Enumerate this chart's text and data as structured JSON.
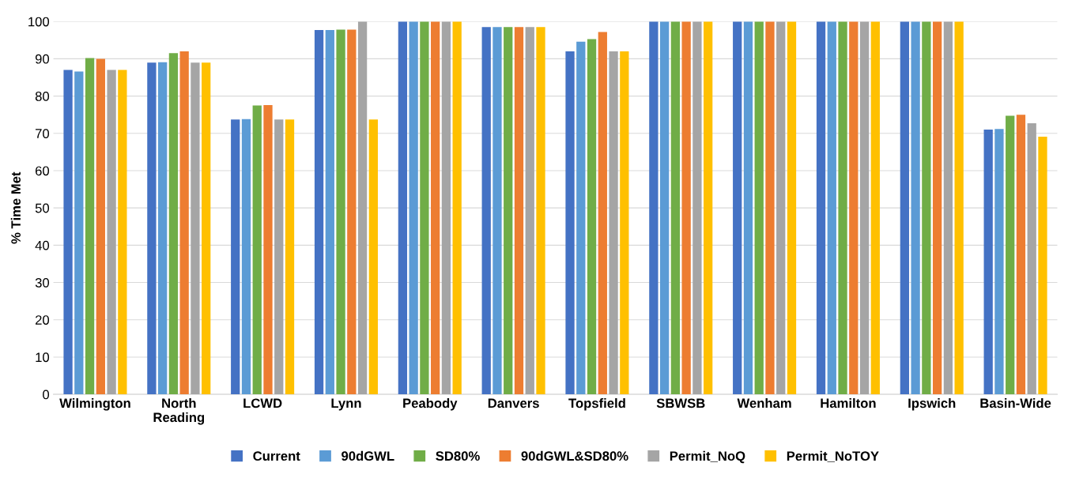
{
  "chart_data": {
    "type": "bar",
    "ylabel": "% Time Met",
    "categories": [
      "Wilmington",
      "North\nReading",
      "LCWD",
      "Lynn",
      "Peabody",
      "Danvers",
      "Topsfield",
      "SBWSB",
      "Wenham",
      "Hamilton",
      "Ipswich",
      "Basin-Wide"
    ],
    "series": [
      {
        "name": "Current",
        "color": "#4472c4",
        "values": [
          87,
          89,
          73.7,
          97.7,
          100,
          98.5,
          92,
          100,
          100,
          100,
          100,
          71
        ]
      },
      {
        "name": "90dGWL",
        "color": "#5b9bd5",
        "values": [
          86.6,
          89.1,
          73.8,
          97.7,
          100,
          98.5,
          94.6,
          100,
          100,
          100,
          100,
          71.2
        ]
      },
      {
        "name": "SD80%",
        "color": "#70ad47",
        "values": [
          90.2,
          91.5,
          77.5,
          97.8,
          100,
          98.5,
          95.3,
          100,
          100,
          100,
          100,
          74.7
        ]
      },
      {
        "name": "90dGWL&SD80%",
        "color": "#ed7d31",
        "values": [
          90,
          92,
          77.6,
          97.8,
          100,
          98.5,
          97.2,
          100,
          100,
          100,
          100,
          75
        ]
      },
      {
        "name": "Permit_NoQ",
        "color": "#a5a5a5",
        "values": [
          87,
          89,
          73.7,
          100,
          100,
          98.5,
          92,
          100,
          100,
          100,
          100,
          72.7
        ]
      },
      {
        "name": "Permit_NoTOY",
        "color": "#ffc000",
        "values": [
          87,
          89,
          73.7,
          73.7,
          100,
          98.5,
          92,
          100,
          100,
          100,
          100,
          69.1
        ]
      }
    ],
    "ylim": [
      0,
      100
    ],
    "yticks": [
      0,
      10,
      20,
      30,
      40,
      50,
      60,
      70,
      80,
      90,
      100
    ],
    "grid": "y",
    "legend": "bottom"
  }
}
